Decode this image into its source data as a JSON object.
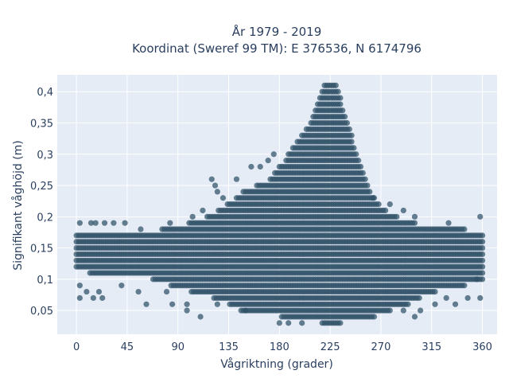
{
  "chart_data": {
    "type": "scatter",
    "title_lines": [
      "År 1979 - 2019",
      "Koordinat (Sweref 99 TM): E 376536, N 6174796"
    ],
    "xlabel": "Vågriktning (grader)",
    "ylabel": "Signifikant våghöjd (m)",
    "xlim": [
      -17,
      373
    ],
    "ylim": [
      0.012,
      0.427
    ],
    "x_ticks": [
      0,
      45,
      90,
      135,
      180,
      225,
      270,
      315,
      360
    ],
    "x_tick_labels": [
      "0",
      "45",
      "90",
      "135",
      "180",
      "225",
      "270",
      "315",
      "360"
    ],
    "y_ticks": [
      0.05,
      0.1,
      0.15,
      0.2,
      0.25,
      0.3,
      0.35,
      0.4
    ],
    "y_tick_labels": [
      "0,05",
      "0,1",
      "0,15",
      "0,2",
      "0,25",
      "0,3",
      "0,35",
      "0,4"
    ],
    "grid": true,
    "legend": "none",
    "x_step_deg": 2,
    "y_step_m": 0.01,
    "band_outline": [
      {
        "x": 0,
        "hmin": 0.12,
        "hmax": 0.17
      },
      {
        "x": 20,
        "hmin": 0.11,
        "hmax": 0.17
      },
      {
        "x": 60,
        "hmin": 0.11,
        "hmax": 0.17
      },
      {
        "x": 90,
        "hmin": 0.09,
        "hmax": 0.18
      },
      {
        "x": 110,
        "hmin": 0.08,
        "hmax": 0.19
      },
      {
        "x": 130,
        "hmin": 0.07,
        "hmax": 0.21
      },
      {
        "x": 150,
        "hmin": 0.05,
        "hmax": 0.24
      },
      {
        "x": 170,
        "hmin": 0.05,
        "hmax": 0.25
      },
      {
        "x": 190,
        "hmin": 0.04,
        "hmax": 0.3
      },
      {
        "x": 205,
        "hmin": 0.04,
        "hmax": 0.34
      },
      {
        "x": 215,
        "hmin": 0.04,
        "hmax": 0.38
      },
      {
        "x": 220,
        "hmin": 0.03,
        "hmax": 0.41
      },
      {
        "x": 230,
        "hmin": 0.03,
        "hmax": 0.41
      },
      {
        "x": 240,
        "hmin": 0.04,
        "hmax": 0.35
      },
      {
        "x": 250,
        "hmin": 0.04,
        "hmax": 0.29
      },
      {
        "x": 260,
        "hmin": 0.04,
        "hmax": 0.24
      },
      {
        "x": 270,
        "hmin": 0.05,
        "hmax": 0.21
      },
      {
        "x": 290,
        "hmin": 0.06,
        "hmax": 0.19
      },
      {
        "x": 310,
        "hmin": 0.08,
        "hmax": 0.18
      },
      {
        "x": 330,
        "hmin": 0.09,
        "hmax": 0.18
      },
      {
        "x": 360,
        "hmin": 0.1,
        "hmax": 0.17
      }
    ],
    "scattered_points": [
      {
        "x": 3,
        "y": 0.19
      },
      {
        "x": 13,
        "y": 0.19
      },
      {
        "x": 17,
        "y": 0.19
      },
      {
        "x": 25,
        "y": 0.19
      },
      {
        "x": 33,
        "y": 0.19
      },
      {
        "x": 43,
        "y": 0.19
      },
      {
        "x": 57,
        "y": 0.18
      },
      {
        "x": 83,
        "y": 0.19
      },
      {
        "x": 103,
        "y": 0.2
      },
      {
        "x": 112,
        "y": 0.21
      },
      {
        "x": 120,
        "y": 0.26
      },
      {
        "x": 123,
        "y": 0.25
      },
      {
        "x": 125,
        "y": 0.24
      },
      {
        "x": 130,
        "y": 0.23
      },
      {
        "x": 142,
        "y": 0.26
      },
      {
        "x": 155,
        "y": 0.28
      },
      {
        "x": 163,
        "y": 0.28
      },
      {
        "x": 170,
        "y": 0.29
      },
      {
        "x": 175,
        "y": 0.3
      },
      {
        "x": 263,
        "y": 0.23
      },
      {
        "x": 278,
        "y": 0.22
      },
      {
        "x": 290,
        "y": 0.21
      },
      {
        "x": 300,
        "y": 0.2
      },
      {
        "x": 330,
        "y": 0.19
      },
      {
        "x": 358,
        "y": 0.2
      },
      {
        "x": 3,
        "y": 0.07
      },
      {
        "x": 9,
        "y": 0.08
      },
      {
        "x": 15,
        "y": 0.07
      },
      {
        "x": 20,
        "y": 0.08
      },
      {
        "x": 23,
        "y": 0.07
      },
      {
        "x": 40,
        "y": 0.09
      },
      {
        "x": 55,
        "y": 0.08
      },
      {
        "x": 62,
        "y": 0.06
      },
      {
        "x": 80,
        "y": 0.08
      },
      {
        "x": 85,
        "y": 0.06
      },
      {
        "x": 98,
        "y": 0.05
      },
      {
        "x": 110,
        "y": 0.04
      },
      {
        "x": 98,
        "y": 0.06
      },
      {
        "x": 125,
        "y": 0.06
      },
      {
        "x": 150,
        "y": 0.05
      },
      {
        "x": 180,
        "y": 0.03
      },
      {
        "x": 188,
        "y": 0.03
      },
      {
        "x": 200,
        "y": 0.03
      },
      {
        "x": 290,
        "y": 0.05
      },
      {
        "x": 300,
        "y": 0.04
      },
      {
        "x": 305,
        "y": 0.05
      },
      {
        "x": 318,
        "y": 0.06
      },
      {
        "x": 328,
        "y": 0.07
      },
      {
        "x": 336,
        "y": 0.06
      },
      {
        "x": 347,
        "y": 0.07
      },
      {
        "x": 358,
        "y": 0.07
      },
      {
        "x": 3,
        "y": 0.09
      },
      {
        "x": 355,
        "y": 0.1
      }
    ],
    "colors": {
      "marker": "#2f5066",
      "marker_opacity": 0.72,
      "plot_bg": "#e5ecf6",
      "grid": "#ffffff",
      "text": "#2a3f5f"
    }
  }
}
